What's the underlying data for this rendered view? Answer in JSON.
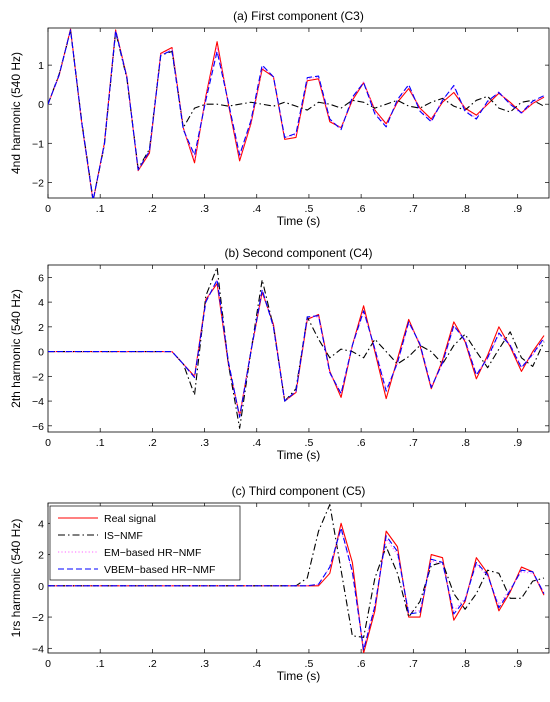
{
  "chart_data": [
    {
      "type": "line",
      "title": "(a) First component (C3)",
      "xlabel": "Time (s)",
      "ylabel": "4nd harmonic (540 Hz)",
      "xlim": [
        0,
        0.96
      ],
      "ylim": [
        -2.4,
        1.95
      ],
      "xticks": [
        0,
        0.1,
        0.2,
        0.3,
        0.4,
        0.5,
        0.6,
        0.7,
        0.8,
        0.9
      ],
      "yticks": [
        -2,
        -1,
        0,
        1
      ],
      "grid": false,
      "x": [
        0.0,
        0.0216,
        0.0432,
        0.0648,
        0.0864,
        0.108,
        0.1296,
        0.1512,
        0.1728,
        0.1944,
        0.216,
        0.2376,
        0.2592,
        0.2808,
        0.3024,
        0.324,
        0.3456,
        0.3672,
        0.3888,
        0.4104,
        0.432,
        0.4536,
        0.4752,
        0.4968,
        0.5184,
        0.54,
        0.5616,
        0.5832,
        0.6048,
        0.6264,
        0.648,
        0.6696,
        0.6912,
        0.7128,
        0.7344,
        0.756,
        0.7776,
        0.7992,
        0.8208,
        0.8424,
        0.864,
        0.8856,
        0.9072,
        0.9288,
        0.9504
      ],
      "series": [
        {
          "name": "Real signal",
          "color": "#ff0000",
          "dash": "solid",
          "values": [
            0.0,
            0.75,
            1.92,
            -0.5,
            -2.48,
            -1.0,
            1.9,
            0.7,
            -1.7,
            -1.25,
            1.3,
            1.45,
            -0.6,
            -1.5,
            0.2,
            1.6,
            0.0,
            -1.45,
            -0.5,
            0.9,
            0.7,
            -0.9,
            -0.85,
            0.6,
            0.65,
            -0.45,
            -0.6,
            0.1,
            0.55,
            -0.15,
            -0.5,
            0.05,
            0.4,
            -0.1,
            -0.38,
            0.05,
            0.3,
            -0.1,
            -0.28,
            0.0,
            0.28,
            0.05,
            -0.22,
            0.02,
            0.18
          ]
        },
        {
          "name": "IS−NMF",
          "color": "#000000",
          "dash": "dashdot",
          "values": [
            0.0,
            0.78,
            1.88,
            -0.45,
            -2.45,
            -1.05,
            1.85,
            0.65,
            -1.65,
            -1.15,
            1.25,
            1.35,
            -0.6,
            -0.1,
            0.0,
            0.0,
            -0.05,
            0.0,
            0.05,
            0.0,
            -0.05,
            0.05,
            -0.05,
            -0.15,
            0.05,
            0.0,
            -0.1,
            0.1,
            0.05,
            -0.1,
            0.0,
            0.1,
            -0.05,
            -0.1,
            0.05,
            0.15,
            -0.05,
            -0.15,
            0.1,
            0.2,
            -0.1,
            -0.2,
            0.05,
            0.1,
            -0.05
          ]
        },
        {
          "name": "EM−based HR−NMF",
          "color": "#ff66ff",
          "dash": "dotted",
          "values": [
            0.0,
            0.76,
            1.9,
            -0.48,
            -2.46,
            -1.02,
            1.88,
            0.68,
            -1.68,
            -1.2,
            1.28,
            1.4,
            -0.62,
            -1.4,
            0.15,
            1.45,
            0.05,
            -1.35,
            -0.45,
            0.95,
            0.72,
            -0.85,
            -0.78,
            0.65,
            0.7,
            -0.4,
            -0.62,
            0.15,
            0.58,
            -0.2,
            -0.55,
            0.1,
            0.48,
            -0.15,
            -0.42,
            0.12,
            0.45,
            -0.15,
            -0.35,
            0.05,
            0.32,
            0.0,
            -0.25,
            0.05,
            0.2
          ]
        },
        {
          "name": "VBEM−based HR−NMF",
          "color": "#0000ff",
          "dash": "dashed",
          "values": [
            0.0,
            0.76,
            1.9,
            -0.48,
            -2.46,
            -1.02,
            1.88,
            0.68,
            -1.68,
            -1.2,
            1.25,
            1.38,
            -0.65,
            -1.3,
            0.1,
            1.35,
            0.05,
            -1.3,
            -0.42,
            1.0,
            0.7,
            -0.85,
            -0.75,
            0.68,
            0.72,
            -0.38,
            -0.65,
            0.18,
            0.55,
            -0.25,
            -0.58,
            0.12,
            0.5,
            -0.18,
            -0.45,
            0.1,
            0.48,
            -0.18,
            -0.38,
            0.08,
            0.3,
            0.0,
            -0.22,
            0.08,
            0.22
          ]
        }
      ]
    },
    {
      "type": "line",
      "title": "(b) Second component (C4)",
      "xlabel": "Time (s)",
      "ylabel": "2th harmonic (540 Hz)",
      "xlim": [
        0,
        0.96
      ],
      "ylim": [
        -6.5,
        7.0
      ],
      "xticks": [
        0,
        0.1,
        0.2,
        0.3,
        0.4,
        0.5,
        0.6,
        0.7,
        0.8,
        0.9
      ],
      "yticks": [
        -6,
        -4,
        -2,
        0,
        2,
        4,
        6
      ],
      "grid": false,
      "x": [
        0.0,
        0.0216,
        0.0432,
        0.0648,
        0.0864,
        0.108,
        0.1296,
        0.1512,
        0.1728,
        0.1944,
        0.216,
        0.2376,
        0.2592,
        0.2808,
        0.3024,
        0.324,
        0.3456,
        0.3672,
        0.3888,
        0.4104,
        0.432,
        0.4536,
        0.4752,
        0.4968,
        0.5184,
        0.54,
        0.5616,
        0.5832,
        0.6048,
        0.6264,
        0.648,
        0.6696,
        0.6912,
        0.7128,
        0.7344,
        0.756,
        0.7776,
        0.7992,
        0.8208,
        0.8424,
        0.864,
        0.8856,
        0.9072,
        0.9288,
        0.9504
      ],
      "series": [
        {
          "name": "Real signal",
          "color": "#ff0000",
          "dash": "solid",
          "values": [
            0.0,
            0.0,
            0.0,
            0.0,
            0.0,
            0.0,
            0.0,
            0.0,
            0.0,
            0.0,
            0.0,
            0.0,
            -1.0,
            -2.0,
            4.2,
            5.5,
            -1.0,
            -5.2,
            0.0,
            4.8,
            2.2,
            -4.0,
            -3.3,
            2.6,
            3.0,
            -1.6,
            -3.7,
            0.5,
            3.7,
            0.0,
            -3.8,
            -0.6,
            2.6,
            0.5,
            -3.0,
            -0.7,
            2.4,
            0.8,
            -2.2,
            -0.3,
            2.0,
            0.4,
            -1.6,
            0.0,
            1.3
          ]
        },
        {
          "name": "IS−NMF",
          "color": "#000000",
          "dash": "dashdot",
          "values": [
            0.0,
            0.0,
            0.0,
            0.0,
            0.0,
            0.0,
            0.0,
            0.0,
            0.0,
            0.0,
            0.0,
            0.0,
            -1.0,
            -3.5,
            4.5,
            6.8,
            -1.0,
            -6.2,
            0.0,
            5.8,
            2.0,
            -4.0,
            -3.0,
            2.8,
            1.0,
            -0.5,
            0.2,
            0.0,
            -0.5,
            1.0,
            0.0,
            -1.0,
            -0.4,
            0.5,
            0.0,
            -1.0,
            0.5,
            1.4,
            0.0,
            -1.3,
            0.2,
            1.6,
            -0.5,
            -1.2,
            0.8
          ]
        },
        {
          "name": "EM−based HR−NMF",
          "color": "#ff66ff",
          "dash": "dotted",
          "values": [
            0.0,
            0.0,
            0.0,
            0.0,
            0.0,
            0.0,
            0.0,
            0.0,
            0.0,
            0.0,
            0.0,
            0.0,
            -1.0,
            -2.1,
            4.0,
            5.8,
            -0.8,
            -5.3,
            0.0,
            5.0,
            2.0,
            -4.0,
            -3.2,
            2.8,
            2.8,
            -1.8,
            -3.3,
            0.5,
            3.2,
            0.3,
            -3.0,
            -1.0,
            2.3,
            0.7,
            -2.8,
            -1.0,
            2.0,
            1.0,
            -1.8,
            -0.6,
            1.4,
            0.6,
            -1.2,
            -0.3,
            1.0
          ]
        },
        {
          "name": "VBEM−based HR−NMF",
          "color": "#0000ff",
          "dash": "dashed",
          "values": [
            0.0,
            0.0,
            0.0,
            0.0,
            0.0,
            0.0,
            0.0,
            0.0,
            0.0,
            0.0,
            0.0,
            0.0,
            -1.0,
            -2.1,
            4.0,
            5.8,
            -0.8,
            -5.3,
            0.0,
            5.0,
            2.0,
            -4.0,
            -3.2,
            2.8,
            2.9,
            -1.7,
            -3.4,
            0.5,
            3.3,
            0.2,
            -3.2,
            -0.9,
            2.4,
            0.6,
            -2.9,
            -0.9,
            2.1,
            0.9,
            -1.9,
            -0.5,
            1.5,
            0.5,
            -1.3,
            -0.2,
            1.1
          ]
        }
      ]
    },
    {
      "type": "line",
      "title": "(c) Third component (C5)",
      "xlabel": "Time (s)",
      "ylabel": "1rs harmonic (540 Hz)",
      "xlim": [
        0,
        0.96
      ],
      "ylim": [
        -4.3,
        5.3
      ],
      "xticks": [
        0,
        0.1,
        0.2,
        0.3,
        0.4,
        0.5,
        0.6,
        0.7,
        0.8,
        0.9
      ],
      "yticks": [
        -4,
        -2,
        0,
        2,
        4
      ],
      "grid": false,
      "legend": "top-left",
      "x": [
        0.0,
        0.0216,
        0.0432,
        0.0648,
        0.0864,
        0.108,
        0.1296,
        0.1512,
        0.1728,
        0.1944,
        0.216,
        0.2376,
        0.2592,
        0.2808,
        0.3024,
        0.324,
        0.3456,
        0.3672,
        0.3888,
        0.4104,
        0.432,
        0.4536,
        0.4752,
        0.4968,
        0.5184,
        0.54,
        0.5616,
        0.5832,
        0.6048,
        0.6264,
        0.648,
        0.6696,
        0.6912,
        0.7128,
        0.7344,
        0.756,
        0.7776,
        0.7992,
        0.8208,
        0.8424,
        0.864,
        0.8856,
        0.9072,
        0.9288,
        0.9504
      ],
      "series": [
        {
          "name": "Real signal",
          "color": "#ff0000",
          "dash": "solid",
          "values": [
            0.0,
            0.0,
            0.0,
            0.0,
            0.0,
            0.0,
            0.0,
            0.0,
            0.0,
            0.0,
            0.0,
            0.0,
            0.0,
            0.0,
            0.0,
            0.0,
            0.0,
            0.0,
            0.0,
            0.0,
            0.0,
            0.0,
            0.0,
            0.0,
            0.0,
            0.8,
            4.0,
            1.5,
            -4.3,
            -1.6,
            3.5,
            2.5,
            -2.0,
            -2.0,
            2.0,
            1.8,
            -2.2,
            -1.0,
            1.8,
            0.8,
            -1.6,
            -0.4,
            1.2,
            0.9,
            -0.6
          ]
        },
        {
          "name": "IS−NMF",
          "color": "#000000",
          "dash": "dashdot",
          "values": [
            0.0,
            0.0,
            0.0,
            0.0,
            0.0,
            0.0,
            0.0,
            0.0,
            0.0,
            0.0,
            0.0,
            0.0,
            0.0,
            0.0,
            0.0,
            0.0,
            0.0,
            0.0,
            0.0,
            0.0,
            0.0,
            0.0,
            0.0,
            0.5,
            3.5,
            5.2,
            1.0,
            -3.2,
            -3.3,
            0.5,
            2.5,
            0.8,
            -2.0,
            -1.0,
            1.3,
            1.5,
            -0.5,
            -1.5,
            -0.5,
            1.0,
            0.8,
            -0.8,
            -0.8,
            0.3,
            0.5
          ]
        },
        {
          "name": "EM−based HR−NMF",
          "color": "#ff66ff",
          "dash": "dotted",
          "values": [
            0.0,
            0.0,
            0.0,
            0.0,
            0.0,
            0.0,
            0.0,
            0.0,
            0.0,
            0.0,
            0.0,
            0.0,
            0.0,
            0.0,
            0.0,
            0.0,
            0.0,
            0.0,
            0.0,
            0.0,
            0.0,
            0.0,
            0.0,
            0.0,
            0.1,
            1.2,
            3.6,
            0.8,
            -4.0,
            -1.2,
            3.0,
            2.0,
            -1.6,
            -1.6,
            1.6,
            1.4,
            -1.6,
            -0.8,
            1.4,
            0.6,
            -1.2,
            -0.2,
            0.9,
            0.8,
            -0.4
          ]
        },
        {
          "name": "VBEM−based HR−NMF",
          "color": "#0000ff",
          "dash": "dashed",
          "values": [
            0.0,
            0.0,
            0.0,
            0.0,
            0.0,
            0.0,
            0.0,
            0.0,
            0.0,
            0.0,
            0.0,
            0.0,
            0.0,
            0.0,
            0.0,
            0.0,
            0.0,
            0.0,
            0.0,
            0.0,
            0.0,
            0.0,
            0.0,
            0.0,
            0.1,
            1.2,
            3.7,
            0.9,
            -4.1,
            -1.3,
            3.2,
            2.2,
            -1.8,
            -1.7,
            1.7,
            1.5,
            -1.8,
            -0.9,
            1.5,
            0.7,
            -1.4,
            -0.3,
            1.0,
            0.9,
            -0.5
          ]
        }
      ]
    }
  ]
}
